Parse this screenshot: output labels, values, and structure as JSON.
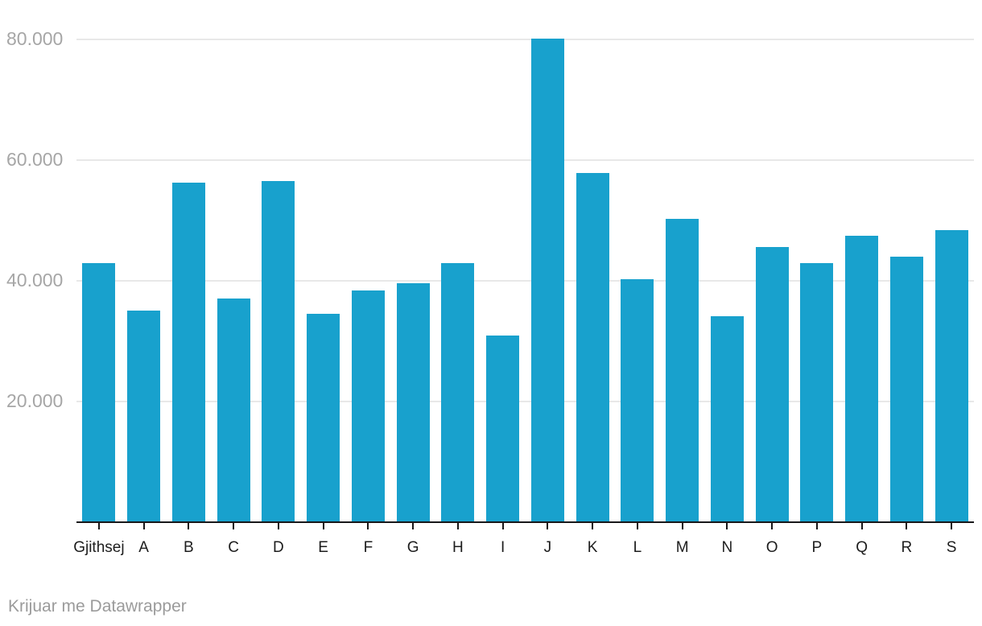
{
  "chart_data": {
    "type": "bar",
    "categories": [
      "Gjithsej",
      "A",
      "B",
      "C",
      "D",
      "E",
      "F",
      "G",
      "H",
      "I",
      "J",
      "K",
      "L",
      "M",
      "N",
      "O",
      "P",
      "Q",
      "R",
      "S"
    ],
    "values": [
      43000,
      35100,
      56300,
      37100,
      56500,
      34500,
      38400,
      39600,
      43000,
      30900,
      80100,
      57900,
      40300,
      50300,
      34100,
      45600,
      42900,
      47500,
      44000,
      48400
    ],
    "title": "",
    "xlabel": "",
    "ylabel": "",
    "ylim": [
      0,
      86500
    ],
    "yticks": [
      {
        "value": 20000,
        "label": "20.000"
      },
      {
        "value": 40000,
        "label": "40.000"
      },
      {
        "value": 60000,
        "label": "60.000"
      },
      {
        "value": 80000,
        "label": "80.000"
      }
    ],
    "grid": true,
    "legend_position": "none",
    "colors": {
      "bar": "#18a1cd",
      "gridline": "#e8e8e8",
      "axis": "#18181a",
      "y_tick_label": "#a6a6a6",
      "x_tick_label": "#1d1d1d",
      "footer_text": "#9b9b9b",
      "background": "#ffffff"
    }
  },
  "footer": {
    "text": "Krijuar me Datawrapper"
  }
}
